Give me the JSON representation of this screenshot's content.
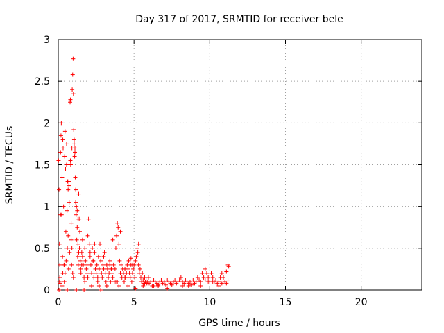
{
  "chart_data": {
    "type": "scatter",
    "title": "Day 317 of 2017, SRMTID for receiver bele",
    "xlabel": "GPS time / hours",
    "ylabel": "SRMTID / TECUs",
    "xlim": [
      0,
      24
    ],
    "ylim": [
      0,
      3
    ],
    "x_ticks": [
      0,
      5,
      10,
      15,
      20
    ],
    "x_tick_labels": [
      "0",
      "5",
      "10",
      "15",
      "20"
    ],
    "y_ticks": [
      0,
      0.5,
      1,
      1.5,
      2,
      2.5,
      3
    ],
    "y_tick_labels": [
      "0",
      "0.5",
      "1",
      "1.5",
      "2",
      "2.5",
      "3"
    ],
    "grid": true,
    "marker": "+",
    "colors": {
      "series": "#ff0000",
      "grid": "#a0a0a0",
      "axis": "#000000"
    },
    "series": [
      {
        "name": "SRMTID",
        "x": [
          0.02,
          0.05,
          0.08,
          0.1,
          0.12,
          0.15,
          0.18,
          0.2,
          0.22,
          0.25,
          0.28,
          0.3,
          0.32,
          0.35,
          0.38,
          0.4,
          0.42,
          0.45,
          0.48,
          0.5,
          0.52,
          0.55,
          0.58,
          0.6,
          0.62,
          0.65,
          0.68,
          0.7,
          0.72,
          0.75,
          0.78,
          0.8,
          0.82,
          0.85,
          0.88,
          0.9,
          0.92,
          0.95,
          0.98,
          1.0,
          1.02,
          1.05,
          1.08,
          1.1,
          1.12,
          1.15,
          1.18,
          1.2,
          1.22,
          1.25,
          1.28,
          1.3,
          1.32,
          1.35,
          1.38,
          1.4,
          1.42,
          1.45,
          1.48,
          1.5,
          1.55,
          1.6,
          1.65,
          1.7,
          1.75,
          1.8,
          1.85,
          1.9,
          1.95,
          2.0,
          2.05,
          2.1,
          2.15,
          2.2,
          2.25,
          2.3,
          2.35,
          2.4,
          2.45,
          2.5,
          2.55,
          2.6,
          2.65,
          2.7,
          2.75,
          2.8,
          2.85,
          2.9,
          2.95,
          3.0,
          3.05,
          3.1,
          3.15,
          3.2,
          3.25,
          3.3,
          3.35,
          3.4,
          3.45,
          3.5,
          3.55,
          3.6,
          3.65,
          3.7,
          3.75,
          3.8,
          3.85,
          3.9,
          3.95,
          4.0,
          4.05,
          4.1,
          4.15,
          4.2,
          4.25,
          4.3,
          4.35,
          4.4,
          4.45,
          4.5,
          4.55,
          4.6,
          4.65,
          4.7,
          4.75,
          4.8,
          4.85,
          4.9,
          4.95,
          5.0,
          5.05,
          5.1,
          5.15,
          5.2,
          5.25,
          5.3,
          5.35,
          5.4,
          5.45,
          5.5,
          5.55,
          5.6,
          5.65,
          5.7,
          5.75,
          5.8,
          5.85,
          5.9,
          5.95,
          6.0,
          6.1,
          6.2,
          6.3,
          6.4,
          6.5,
          6.6,
          6.7,
          6.8,
          6.9,
          7.0,
          7.1,
          7.2,
          7.3,
          7.4,
          7.5,
          7.6,
          7.7,
          7.8,
          7.9,
          8.0,
          8.1,
          8.2,
          8.3,
          8.4,
          8.5,
          8.6,
          8.7,
          8.8,
          8.9,
          9.0,
          9.1,
          9.2,
          9.3,
          9.4,
          9.5,
          9.6,
          9.7,
          9.8,
          9.9,
          10.0,
          10.1,
          10.2,
          10.3,
          10.4,
          10.5,
          10.6,
          10.7,
          10.8,
          10.9,
          11.0,
          11.1,
          11.2,
          11.25,
          0.05,
          0.1,
          0.15,
          0.25,
          0.3,
          0.45,
          0.55,
          0.6,
          0.7,
          0.8,
          0.85,
          0.95,
          1.05,
          1.1,
          1.15,
          1.2,
          1.25,
          1.35,
          1.45,
          1.6,
          1.7,
          1.9,
          2.1,
          2.2,
          2.4,
          2.6,
          2.8,
          3.0,
          3.2,
          3.4,
          3.6,
          3.8,
          4.0,
          4.1,
          4.3,
          4.6,
          4.8,
          5.1,
          5.3,
          5.6,
          6.3,
          7.2,
          8.6,
          9.4,
          9.7,
          10.2,
          10.6,
          11.1,
          11.2,
          0.08,
          0.4,
          0.65,
          0.9,
          1.0,
          1.3,
          1.55,
          1.75,
          1.95,
          2.3,
          2.7,
          3.5,
          3.9,
          4.4,
          4.9,
          5.7,
          6.6,
          8.2,
          9.9,
          10.8
        ],
        "y": [
          1.55,
          1.2,
          0.55,
          0.15,
          0.08,
          1.65,
          1.85,
          2.0,
          0.9,
          1.35,
          0.4,
          0.2,
          1.7,
          1.0,
          0.3,
          0.1,
          1.6,
          1.9,
          1.45,
          0.7,
          0.35,
          1.75,
          0.95,
          0.5,
          1.3,
          0.65,
          0.25,
          1.25,
          1.05,
          0.45,
          2.25,
          2.28,
          1.5,
          0.8,
          0.3,
          1.7,
          2.4,
          2.58,
          2.77,
          2.35,
          1.92,
          1.75,
          1.6,
          1.7,
          1.35,
          1.2,
          0.9,
          1.0,
          0.6,
          0.75,
          0.4,
          0.55,
          0.3,
          1.15,
          0.85,
          0.5,
          0.7,
          0.35,
          0.25,
          0.2,
          0.45,
          0.6,
          0.3,
          0.15,
          0.5,
          0.35,
          0.25,
          0.2,
          0.65,
          0.85,
          0.55,
          0.4,
          0.3,
          0.2,
          0.5,
          0.35,
          0.15,
          0.45,
          0.25,
          0.2,
          0.3,
          0.15,
          0.4,
          0.25,
          0.55,
          0.35,
          0.2,
          0.15,
          0.3,
          0.25,
          0.45,
          0.2,
          0.1,
          0.3,
          0.25,
          0.15,
          0.2,
          0.35,
          0.1,
          0.25,
          0.2,
          0.15,
          0.3,
          0.1,
          0.25,
          0.5,
          0.65,
          0.8,
          0.75,
          0.55,
          0.35,
          0.2,
          0.3,
          0.15,
          0.25,
          0.2,
          0.1,
          0.25,
          0.15,
          0.2,
          0.3,
          0.25,
          0.35,
          0.2,
          0.15,
          0.3,
          0.1,
          0.2,
          0.25,
          0.3,
          0.15,
          0.35,
          0.4,
          0.5,
          0.45,
          0.3,
          0.2,
          0.25,
          0.15,
          0.1,
          0.2,
          0.12,
          0.08,
          0.15,
          0.1,
          0.12,
          0.08,
          0.1,
          0.15,
          0.08,
          0.1,
          0.05,
          0.12,
          0.1,
          0.08,
          0.06,
          0.1,
          0.12,
          0.08,
          0.1,
          0.06,
          0.12,
          0.1,
          0.08,
          0.06,
          0.1,
          0.12,
          0.08,
          0.1,
          0.12,
          0.15,
          0.1,
          0.08,
          0.12,
          0.1,
          0.08,
          0.1,
          0.06,
          0.12,
          0.08,
          0.1,
          0.15,
          0.12,
          0.1,
          0.2,
          0.15,
          0.25,
          0.2,
          0.15,
          0.1,
          0.2,
          0.15,
          0.1,
          0.12,
          0.08,
          0.1,
          0.15,
          0.2,
          0.15,
          0.1,
          0.08,
          0.12,
          0.28,
          0.0,
          0.3,
          0.9,
          0.05,
          1.8,
          0.2,
          1.5,
          0.0,
          1.3,
          1.55,
          0.6,
          0.2,
          1.8,
          1.65,
          1.05,
          0.0,
          0.95,
          0.45,
          0.2,
          0.4,
          0.0,
          0.3,
          0.45,
          0.05,
          0.55,
          0.1,
          0.0,
          0.4,
          0.05,
          0.3,
          0.6,
          0.1,
          0.05,
          0.7,
          0.2,
          0.05,
          0.38,
          0.02,
          0.55,
          0.05,
          0.05,
          0.02,
          0.05,
          0.05,
          0.12,
          0.1,
          0.05,
          0.22,
          0.3,
          0.1,
          0.3,
          1.2,
          0.5,
          0.15,
          0.85,
          0.3,
          0.1,
          0.15,
          0.35,
          0.05,
          0.25,
          0.1,
          0.15,
          0.3,
          0.08,
          0.05,
          0.05,
          0.1,
          0.08
        ]
      }
    ]
  }
}
